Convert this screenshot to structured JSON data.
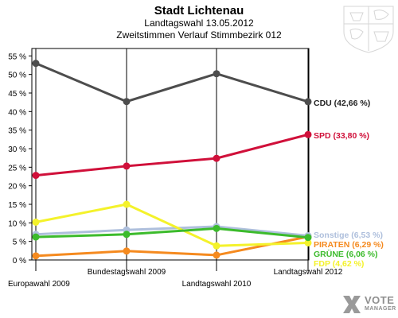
{
  "header": {
    "title": "Stadt Lichtenau",
    "subtitle": "Landtagswahl 13.05.2012",
    "subtitle2": "Zweitstimmen Verlauf Stimmbezirk 012"
  },
  "logo": {
    "line1": "VOTE",
    "line2": "MANAGER"
  },
  "chart_data": {
    "type": "line",
    "title": "Stadt Lichtenau",
    "subtitle": "Landtagswahl 13.05.2012 · Zweitstimmen Verlauf Stimmbezirk 012",
    "categories": [
      "Europawahl 2009",
      "Bundestagswahl 2009",
      "Landtagswahl 2010",
      "Landtagswahl 2012"
    ],
    "ylim": [
      0,
      57
    ],
    "yticks": [
      "0 %",
      "5 %",
      "10 %",
      "15 %",
      "20 %",
      "25 %",
      "30 %",
      "35 %",
      "40 %",
      "45 %",
      "50 %",
      "55 %"
    ],
    "grid": false,
    "series": [
      {
        "name": "CDU",
        "label": "CDU (42,66 %)",
        "color": "#4d4d4d",
        "label_color": "#222222",
        "values": [
          53.0,
          42.7,
          50.2,
          42.66
        ]
      },
      {
        "name": "SPD",
        "label": "SPD (33,80 %)",
        "color": "#d0103a",
        "label_color": "#d0103a",
        "values": [
          22.8,
          25.3,
          27.4,
          33.8
        ]
      },
      {
        "name": "Sonstige",
        "label": "Sonstige (6,53 %)",
        "color": "#aebfdc",
        "label_color": "#aebfdc",
        "values": [
          6.9,
          8.1,
          9.0,
          6.53
        ]
      },
      {
        "name": "PIRATEN",
        "label": "PIRATEN (6,29 %)",
        "color": "#f58a1f",
        "label_color": "#f58a1f",
        "values": [
          1.1,
          2.4,
          1.3,
          6.29
        ]
      },
      {
        "name": "GRÜNE",
        "label": "GRÜNE (6,06 %)",
        "color": "#3cbb2c",
        "label_color": "#3cbb2c",
        "values": [
          6.2,
          6.9,
          8.5,
          6.06
        ]
      },
      {
        "name": "FDP",
        "label": "FDP (4,62 %)",
        "color": "#f4f22b",
        "label_color": "#f4f22b",
        "values": [
          10.2,
          15.0,
          3.8,
          4.62
        ]
      }
    ]
  }
}
